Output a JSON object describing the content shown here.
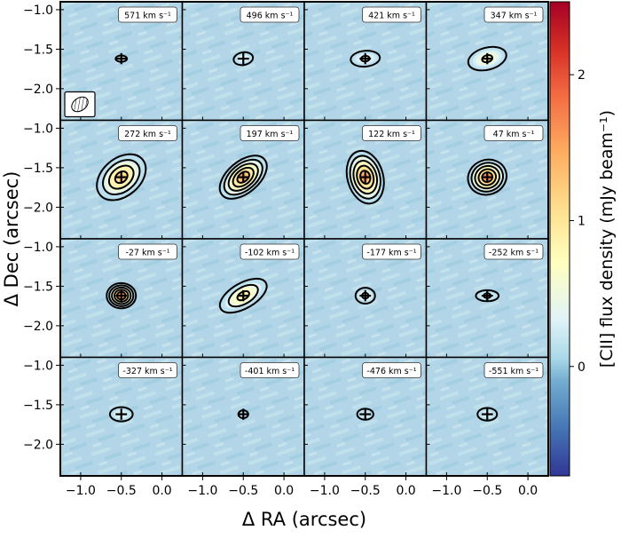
{
  "chart_data": {
    "type": "heatmap",
    "layout": "channel-map grid",
    "rows": 4,
    "cols": 4,
    "xlabel": "Δ RA (arcsec)",
    "ylabel": "Δ Dec (arcsec)",
    "xlim": [
      -1.25,
      0.25
    ],
    "ylim": [
      -2.4,
      -0.9
    ],
    "xticks": [
      -1.0,
      -0.5,
      0.0
    ],
    "xtick_labels": [
      "−1.0",
      "−0.5",
      "0.0"
    ],
    "yticks": [
      -1.0,
      -1.5,
      -2.0
    ],
    "ytick_labels": [
      "−1.0",
      "−1.5",
      "−2.0"
    ],
    "colorbar": {
      "label": "[CII] flux density (mJy beam⁻¹)",
      "range": [
        -0.75,
        2.5
      ],
      "ticks": [
        0,
        1,
        2
      ],
      "tick_labels": [
        "0",
        "1",
        "2"
      ],
      "colormap": "RdYlBu_r"
    },
    "source_position": {
      "x": -0.5,
      "y": -1.62
    },
    "beam": {
      "major": 0.22,
      "minor": 0.16,
      "pa_deg": 35
    },
    "panels": [
      {
        "label": "571 km s⁻¹",
        "peak": 0.3,
        "size": 0.04,
        "ext": [
          0.05,
          0.02
        ],
        "angle": 0
      },
      {
        "label": "496 km s⁻¹",
        "peak": 0.45,
        "size": 0.06,
        "ext": [
          0.1,
          0.06
        ],
        "angle": 10
      },
      {
        "label": "421 km s⁻¹",
        "peak": 0.55,
        "size": 0.07,
        "ext": [
          0.16,
          0.08
        ],
        "angle": 5
      },
      {
        "label": "347 km s⁻¹",
        "peak": 0.8,
        "size": 0.09,
        "ext": [
          0.22,
          0.12
        ],
        "angle": 15
      },
      {
        "label": "272 km s⁻¹",
        "peak": 1.35,
        "size": 0.11,
        "ext": [
          0.32,
          0.22
        ],
        "angle": 40
      },
      {
        "label": "197 km s⁻¹",
        "peak": 1.55,
        "size": 0.12,
        "ext": [
          0.32,
          0.18
        ],
        "angle": 40
      },
      {
        "label": "122 km s⁻¹",
        "peak": 1.7,
        "size": 0.12,
        "ext": [
          0.2,
          0.32
        ],
        "angle": 15
      },
      {
        "label": "47 km s⁻¹",
        "peak": 1.75,
        "size": 0.12,
        "ext": [
          0.22,
          0.2
        ],
        "angle": 20
      },
      {
        "label": "-27 km s⁻¹",
        "peak": 1.7,
        "size": 0.12,
        "ext": [
          0.16,
          0.14
        ],
        "angle": 0
      },
      {
        "label": "-102 km s⁻¹",
        "peak": 1.05,
        "size": 0.1,
        "ext": [
          0.3,
          0.14
        ],
        "angle": 30
      },
      {
        "label": "-177 km s⁻¹",
        "peak": 0.75,
        "size": 0.07,
        "ext": [
          0.1,
          0.08
        ],
        "angle": 0
      },
      {
        "label": "-252 km s⁻¹",
        "peak": 0.5,
        "size": 0.06,
        "ext": [
          0.12,
          0.05
        ],
        "angle": 0
      },
      {
        "label": "-327 km s⁻¹",
        "peak": 0.45,
        "size": 0.06,
        "ext": [
          0.12,
          0.07
        ],
        "angle": 0
      },
      {
        "label": "-401 km s⁻¹",
        "peak": 0.35,
        "size": 0.04,
        "ext": [
          0.04,
          0.03
        ],
        "angle": 0
      },
      {
        "label": "-476 km s⁻¹",
        "peak": 0.35,
        "size": 0.05,
        "ext": [
          0.08,
          0.05
        ],
        "angle": 0
      },
      {
        "label": "-551 km s⁻¹",
        "peak": 0.4,
        "size": 0.05,
        "ext": [
          0.1,
          0.06
        ],
        "angle": 0
      }
    ]
  }
}
